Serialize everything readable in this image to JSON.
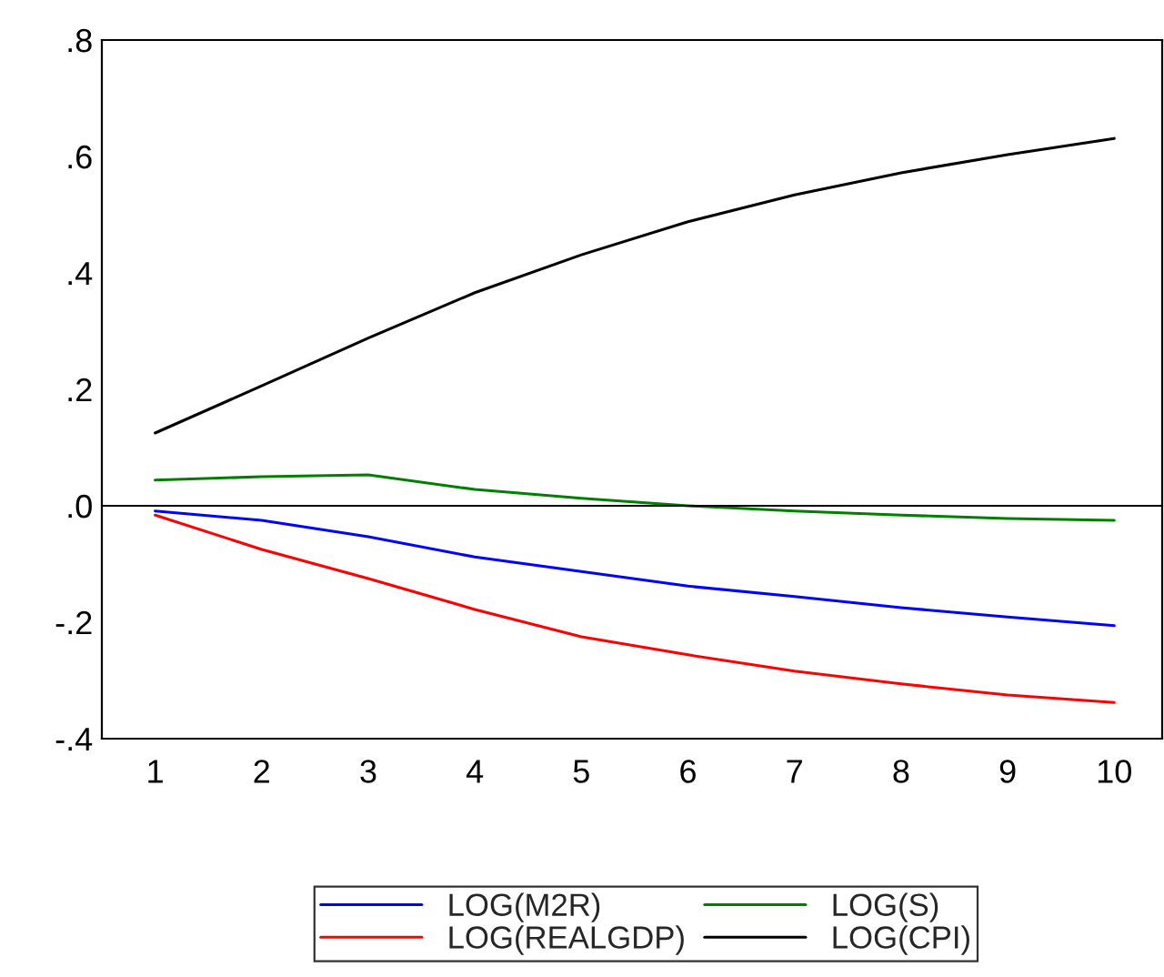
{
  "chart_data": {
    "type": "line",
    "x": [
      1,
      2,
      3,
      4,
      5,
      6,
      7,
      8,
      9,
      10
    ],
    "series": [
      {
        "name": "LOG(M2R)",
        "color": "#0000ff",
        "values": [
          -0.009,
          -0.025,
          -0.053,
          -0.088,
          -0.113,
          -0.138,
          -0.156,
          -0.175,
          -0.191,
          -0.206
        ]
      },
      {
        "name": "LOG(REALGDP)",
        "color": "#ff0000",
        "values": [
          -0.016,
          -0.075,
          -0.125,
          -0.178,
          -0.225,
          -0.256,
          -0.284,
          -0.306,
          -0.325,
          -0.338
        ]
      },
      {
        "name": "LOG(S)",
        "color": "#008000",
        "values": [
          0.044,
          0.05,
          0.053,
          0.028,
          0.013,
          0.0,
          -0.009,
          -0.016,
          -0.022,
          -0.025
        ]
      },
      {
        "name": "LOG(CPI)",
        "color": "#000000",
        "values": [
          0.125,
          0.206,
          0.288,
          0.366,
          0.431,
          0.488,
          0.534,
          0.572,
          0.603,
          0.631
        ]
      }
    ],
    "xlim": [
      0.5,
      10.45
    ],
    "xticks": [
      1,
      2,
      3,
      4,
      5,
      6,
      7,
      8,
      9,
      10
    ],
    "ylim": [
      -0.4,
      0.8
    ],
    "yticks": [
      {
        "value": -0.4,
        "label": "-.4"
      },
      {
        "value": -0.2,
        "label": "-.2"
      },
      {
        "value": 0.0,
        "label": ".0"
      },
      {
        "value": 0.2,
        "label": ".2"
      },
      {
        "value": 0.4,
        "label": ".4"
      },
      {
        "value": 0.6,
        "label": ".6"
      },
      {
        "value": 0.8,
        "label": ".8"
      }
    ],
    "ref_lines": [
      {
        "axis": "y",
        "value": 0,
        "color": "#000000"
      }
    ],
    "grid": false,
    "legend": "bottom",
    "line_style": "solid",
    "marker": "none"
  }
}
